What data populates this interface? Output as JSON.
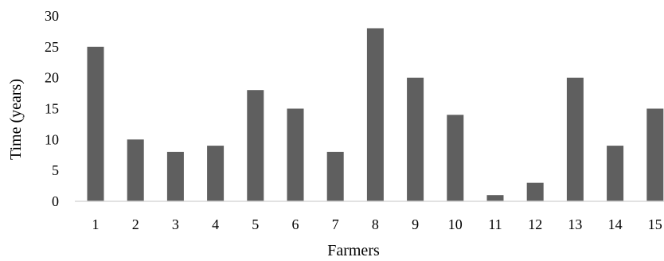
{
  "chart_data": {
    "type": "bar",
    "title": "",
    "xlabel": "Farmers",
    "ylabel": "Time (years)",
    "categories": [
      "1",
      "2",
      "3",
      "4",
      "5",
      "6",
      "7",
      "8",
      "9",
      "10",
      "11",
      "12",
      "13",
      "14",
      "15"
    ],
    "values": [
      25,
      10,
      8,
      9,
      18,
      15,
      8,
      28,
      20,
      14,
      1,
      3,
      20,
      9,
      15
    ],
    "ylim": [
      0,
      30
    ],
    "yticks": [
      "0",
      "5",
      "10",
      "15",
      "20",
      "25",
      "30"
    ],
    "grid": false,
    "legend": "none",
    "bar_color": "#5f5f5f",
    "axis_color": "#d9d9d9"
  }
}
